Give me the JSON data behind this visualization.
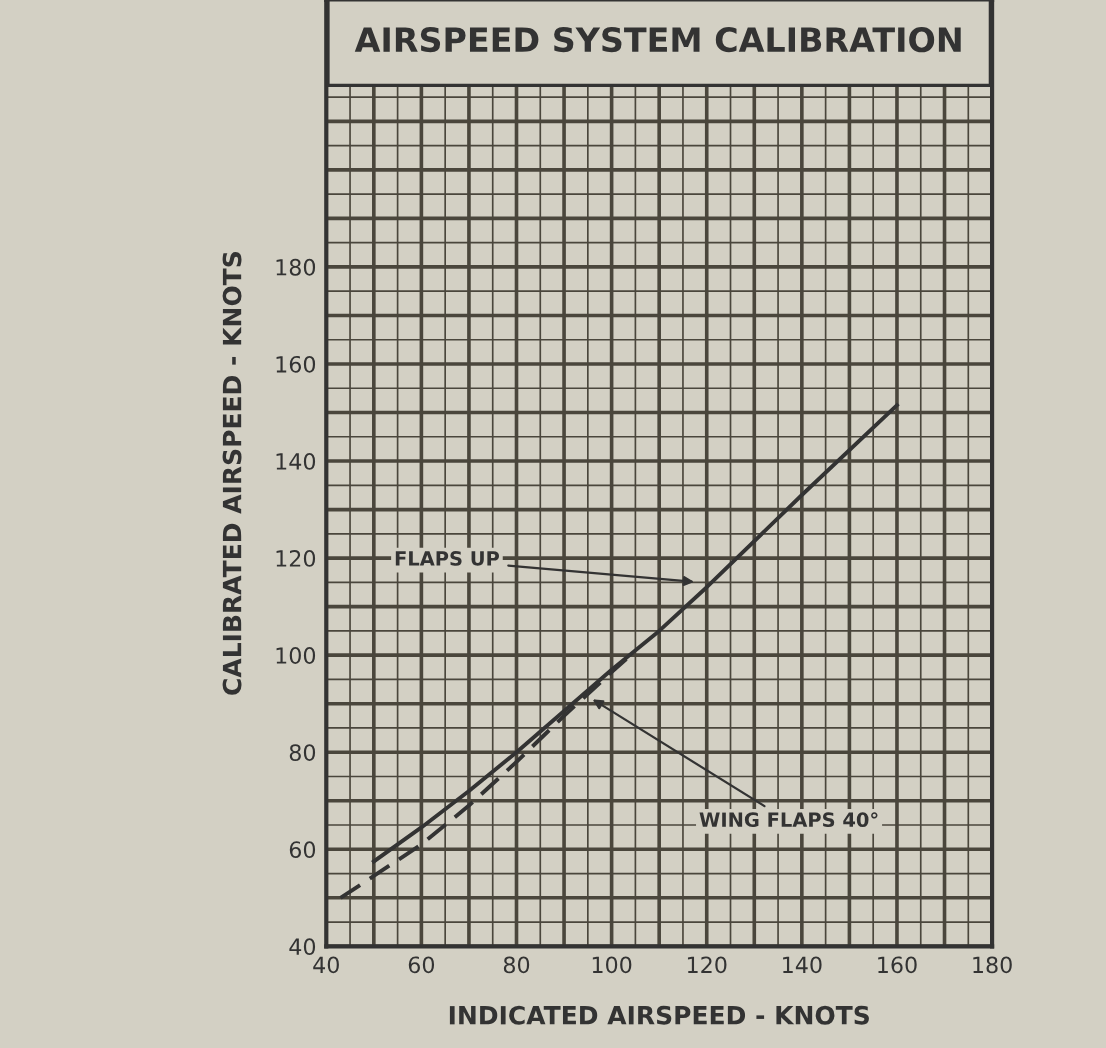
{
  "chart_data": {
    "type": "line",
    "title": "AIRSPEED SYSTEM CALIBRATION",
    "xlabel": "INDICATED AIRSPEED - KNOTS",
    "ylabel": "CALIBRATED AIRSPEED - KNOTS",
    "series": [
      {
        "color": "#333333",
        "line_style": "solid",
        "x": [
          50,
          60,
          70,
          80,
          90,
          100,
          110,
          120,
          140,
          160
        ],
        "values": [
          57.5,
          64.5,
          72,
          80,
          88.5,
          97,
          105,
          114,
          133,
          151.5
        ]
      },
      {
        "color": "#333333",
        "line_style": "dashed",
        "x": [
          43,
          50,
          60,
          70,
          80,
          90,
          100,
          104
        ],
        "values": [
          50,
          54.5,
          61,
          69,
          78,
          87.5,
          96.5,
          100
        ]
      }
    ],
    "annotations": [
      {
        "text": "FLAPS UP",
        "x": 118.5,
        "y": 115
      },
      {
        "text": "WING FLAPS 40°",
        "x": 95,
        "y": 91.5
      }
    ],
    "xlim": [
      40,
      180
    ],
    "ylim": [
      40,
      235
    ],
    "xticks": [
      40,
      60,
      80,
      100,
      120,
      140,
      160,
      180
    ],
    "yticks": [
      40,
      60,
      80,
      100,
      120,
      140,
      160,
      180
    ],
    "grid": true,
    "marker": "none"
  }
}
